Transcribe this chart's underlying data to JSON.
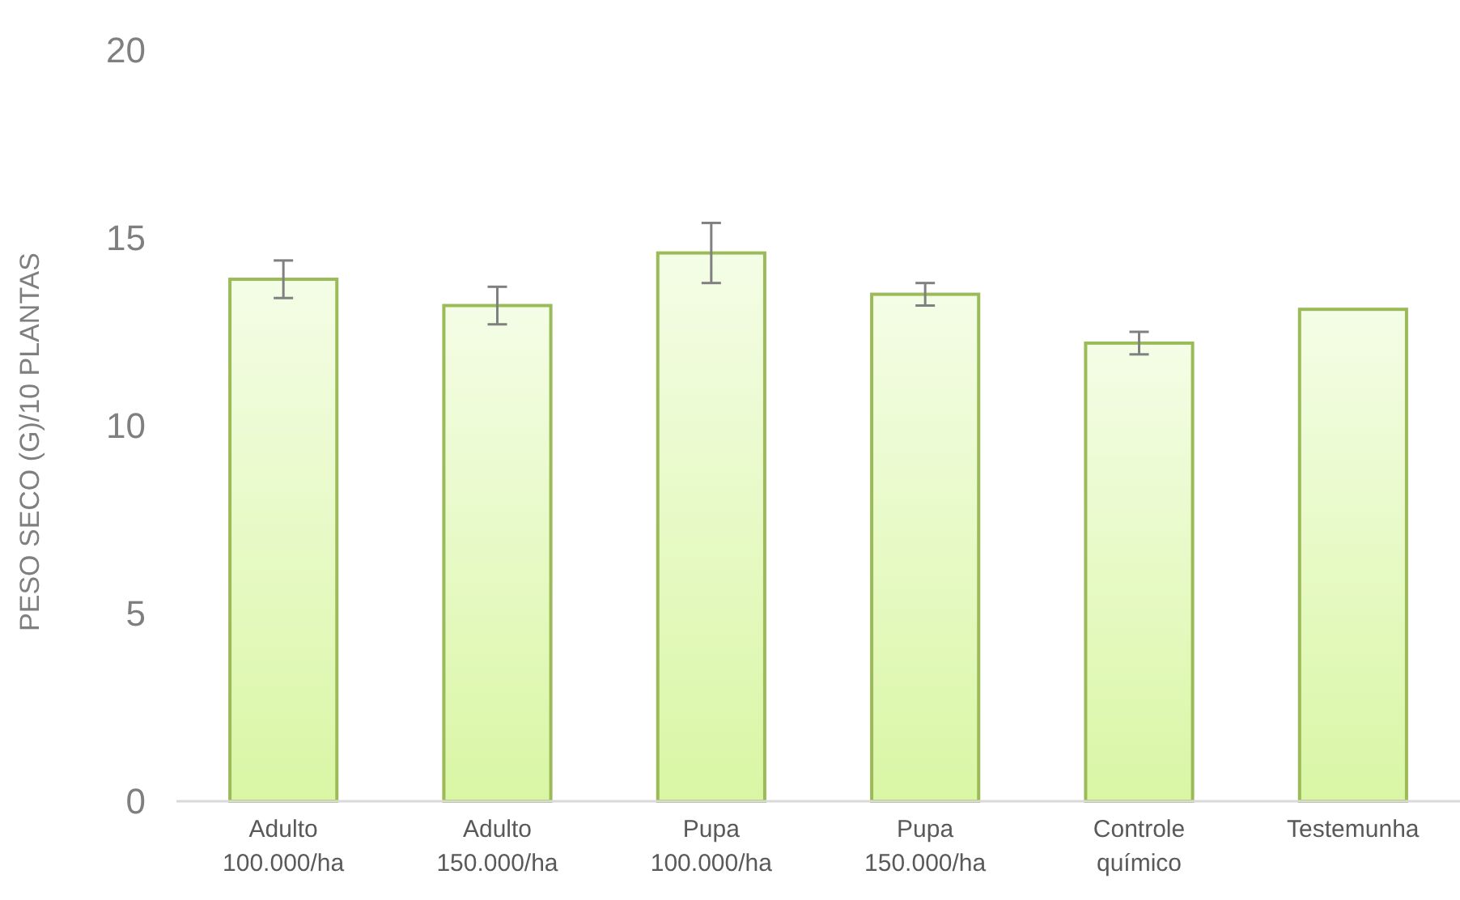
{
  "chart_data": {
    "type": "bar",
    "ylabel": "PESO SECO (G)/10 PLANTAS",
    "categories": [
      "Adulto 100.000/ha",
      "Adulto 150.000/ha",
      "Pupa 100.000/ha",
      "Pupa 150.000/ha",
      "Controle químico",
      "Testemunha"
    ],
    "values": [
      13.9,
      13.2,
      14.6,
      13.5,
      12.2,
      13.1
    ],
    "errors": [
      0.5,
      0.5,
      0.8,
      0.3,
      0.3,
      null
    ],
    "color": "#9bbb59",
    "ylim": [
      0,
      20
    ],
    "yticks": [
      0,
      5,
      10,
      15,
      20
    ],
    "grid": false
  }
}
